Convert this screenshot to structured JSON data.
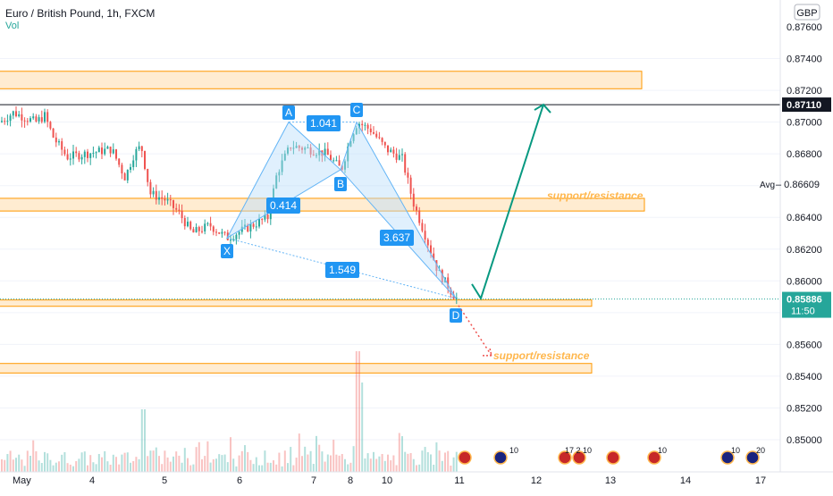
{
  "header": {
    "symbol": "Euro / British Pound, 1h, FXCM",
    "volume_label": "Vol"
  },
  "price_axis": {
    "currency": "GBP",
    "ticks": [
      "0.87600",
      "0.87400",
      "0.87200",
      "0.87000",
      "0.86800",
      "0.86400",
      "0.86200",
      "0.86000",
      "0.85600",
      "0.85400",
      "0.85200",
      "0.85000"
    ],
    "current_price": "0.85886",
    "countdown": "11:50",
    "level_label": "0.87110",
    "avg_label": "Avg",
    "avg_value": "0.86609"
  },
  "time_axis": {
    "labels": [
      "May",
      "4",
      "5",
      "6",
      "7",
      "8",
      "10",
      "11",
      "12",
      "13",
      "14",
      "17"
    ]
  },
  "annotations": {
    "points": [
      "X",
      "A",
      "B",
      "C",
      "D"
    ],
    "ratios": [
      "1.041",
      "0.414",
      "3.637",
      "1.549"
    ],
    "zone_labels": [
      "support/resistance",
      "support/resistance"
    ]
  },
  "events": {
    "counts": [
      "10",
      "17",
      "2",
      "10",
      "10",
      "10",
      "20"
    ]
  },
  "colors": {
    "bull": "#26a69a",
    "bear": "#ef5350",
    "pattern_line": "#64b5f6",
    "pattern_fill": "#bbdefb",
    "zone_fill": "#ffe0b2",
    "zone_border": "#ff9800",
    "label_blue": "#2196f3",
    "projection": "#089981"
  },
  "chart_data": {
    "type": "candlestick",
    "title": "Euro / British Pound, 1h, FXCM",
    "y_range": [
      0.8486,
      0.8781
    ],
    "x_labels": [
      "May",
      "4",
      "5",
      "6",
      "7",
      "8",
      "10",
      "11",
      "12",
      "13",
      "14",
      "17"
    ],
    "harmonic_pattern": {
      "X": 0.8627,
      "A": 0.87,
      "B": 0.867,
      "C": 0.87,
      "D": 0.8589,
      "ratios": {
        "XAB": 0.414,
        "ABC": 1.041,
        "BCD": 3.637,
        "XAD": 1.549
      }
    },
    "zones": [
      {
        "label": "",
        "from": 0.8721,
        "to": 0.8732
      },
      {
        "label": "support/resistance",
        "from": 0.8644,
        "to": 0.8652
      },
      {
        "label": "",
        "from": 0.8584,
        "to": 0.8588
      },
      {
        "label": "support/resistance",
        "from": 0.8542,
        "to": 0.8548
      }
    ],
    "horizontal_level": 0.8711,
    "current_price": 0.85886,
    "average": 0.86609,
    "projection_up": {
      "from": 0.8589,
      "to": 0.8711
    },
    "projection_down": {
      "from": 0.8589,
      "to": 0.8553
    }
  }
}
